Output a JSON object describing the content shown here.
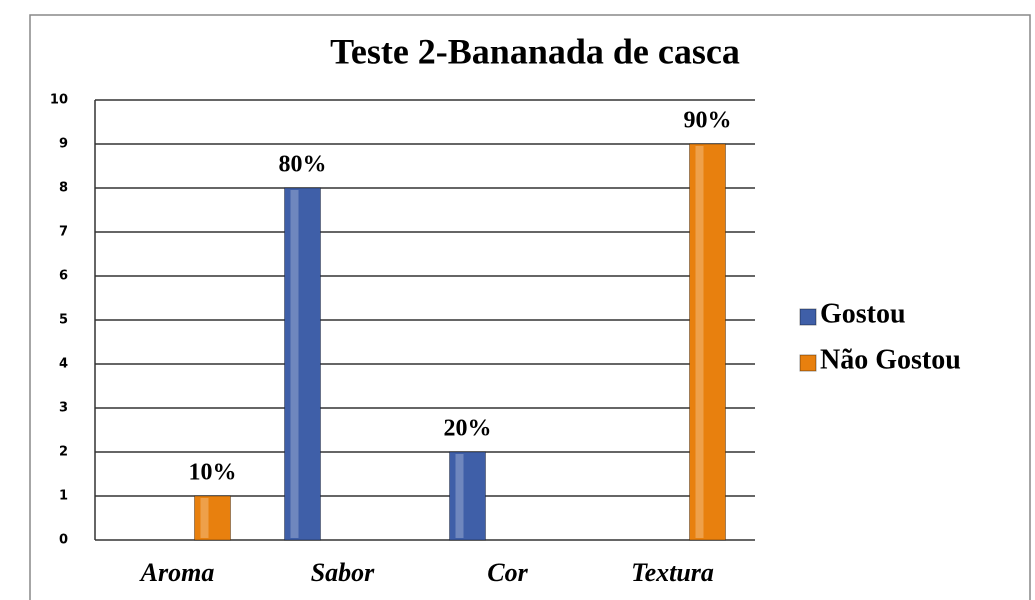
{
  "chart_data": {
    "type": "bar",
    "title": "Teste 2-Bananada de casca",
    "categories": [
      "Aroma",
      "Sabor",
      "Cor",
      "Textura"
    ],
    "series": [
      {
        "name": "Gostou",
        "color": "#3f5fa8",
        "values": [
          null,
          8,
          2,
          null
        ],
        "value_labels": [
          null,
          "80%",
          "20%",
          null
        ]
      },
      {
        "name": "Não Gostou",
        "color": "#e8800e",
        "values": [
          1,
          null,
          null,
          9
        ],
        "value_labels": [
          "10%",
          null,
          null,
          "90%"
        ]
      }
    ],
    "ylim": [
      0,
      10
    ],
    "yticks": [
      0,
      1,
      2,
      3,
      4,
      5,
      6,
      7,
      8,
      9,
      10
    ],
    "grid": true,
    "legend": "right"
  }
}
